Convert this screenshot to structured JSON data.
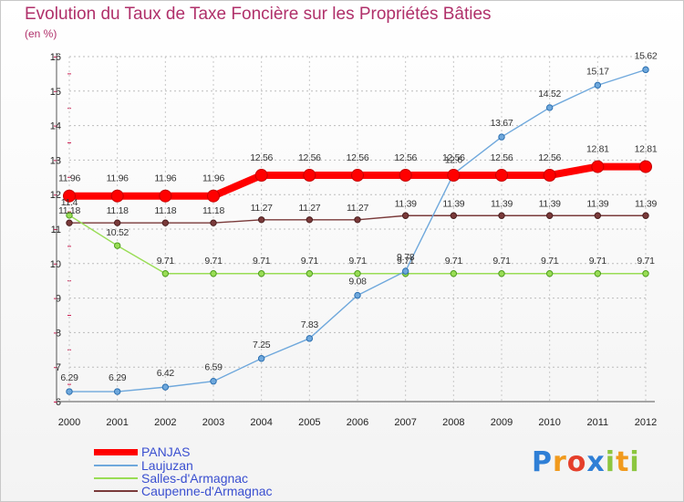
{
  "chart_data": {
    "type": "line",
    "title": "Evolution du Taux de Taxe Foncière sur les Propriétés Bâties",
    "unit": "(en %)",
    "xlabel": "",
    "ylabel": "",
    "ylim": [
      6,
      16
    ],
    "y_ticks": [
      "6",
      "7",
      "8",
      "9",
      "10",
      "11",
      "12",
      "13",
      "14",
      "15",
      "16"
    ],
    "categories": [
      "2000",
      "2001",
      "2002",
      "2003",
      "2004",
      "2005",
      "2006",
      "2007",
      "2008",
      "2009",
      "2010",
      "2011",
      "2012"
    ],
    "grid": true,
    "legend_position": "bottom-left",
    "series": [
      {
        "name": "PANJAS",
        "color": "#ff0000",
        "values": [
          11.96,
          11.96,
          11.96,
          11.96,
          12.56,
          12.56,
          12.56,
          12.56,
          12.56,
          12.56,
          12.56,
          12.81,
          12.81
        ],
        "labels": [
          "11.96",
          "11.96",
          "11.96",
          "11.96",
          "12.56",
          "12.56",
          "12.56",
          "12.56",
          "12.56",
          "12.56",
          "12.56",
          "12.81",
          "12.81"
        ]
      },
      {
        "name": "Laujuzan",
        "color": "#6fa8dc",
        "values": [
          6.29,
          6.29,
          6.42,
          6.59,
          7.25,
          7.83,
          9.08,
          9.78,
          12.6,
          13.67,
          14.52,
          15.17,
          15.62
        ],
        "labels": [
          "6.29",
          "6.29",
          "6.42",
          "6.59",
          "7.25",
          "7.83",
          "9.08",
          "9.78",
          "12.6",
          "13.67",
          "14.52",
          "15.17",
          "15.62"
        ]
      },
      {
        "name": "Salles-d'Armagnac",
        "color": "#99dd55",
        "values": [
          11.4,
          10.52,
          9.71,
          9.71,
          9.71,
          9.71,
          9.71,
          9.71,
          9.71,
          9.71,
          9.71,
          9.71,
          9.71
        ],
        "labels": [
          "11.4",
          "10.52",
          "9.71",
          "9.71",
          "9.71",
          "9.71",
          "9.71",
          "9.71",
          "9.71",
          "9.71",
          "9.71",
          "9.71",
          "9.71"
        ]
      },
      {
        "name": "Caupenne-d'Armagnac",
        "color": "#7a3a3a",
        "values": [
          11.18,
          11.18,
          11.18,
          11.18,
          11.27,
          11.27,
          11.27,
          11.39,
          11.39,
          11.39,
          11.39,
          11.39,
          11.39
        ],
        "labels": [
          "11.18",
          "11.18",
          "11.18",
          "11.18",
          "11.27",
          "11.27",
          "11.27",
          "11.39",
          "11.39",
          "11.39",
          "11.39",
          "11.39",
          "11.39"
        ]
      }
    ]
  },
  "logo": {
    "letters": [
      {
        "char": "P",
        "color": "#2f7fd6"
      },
      {
        "char": "r",
        "color": "#f19a1d"
      },
      {
        "char": "o",
        "color": "#e53f2b"
      },
      {
        "char": "x",
        "color": "#2f7fd6"
      },
      {
        "char": "i",
        "color": "#8cc63f"
      },
      {
        "char": "t",
        "color": "#f19a1d"
      },
      {
        "char": "i",
        "color": "#8cc63f"
      }
    ]
  }
}
